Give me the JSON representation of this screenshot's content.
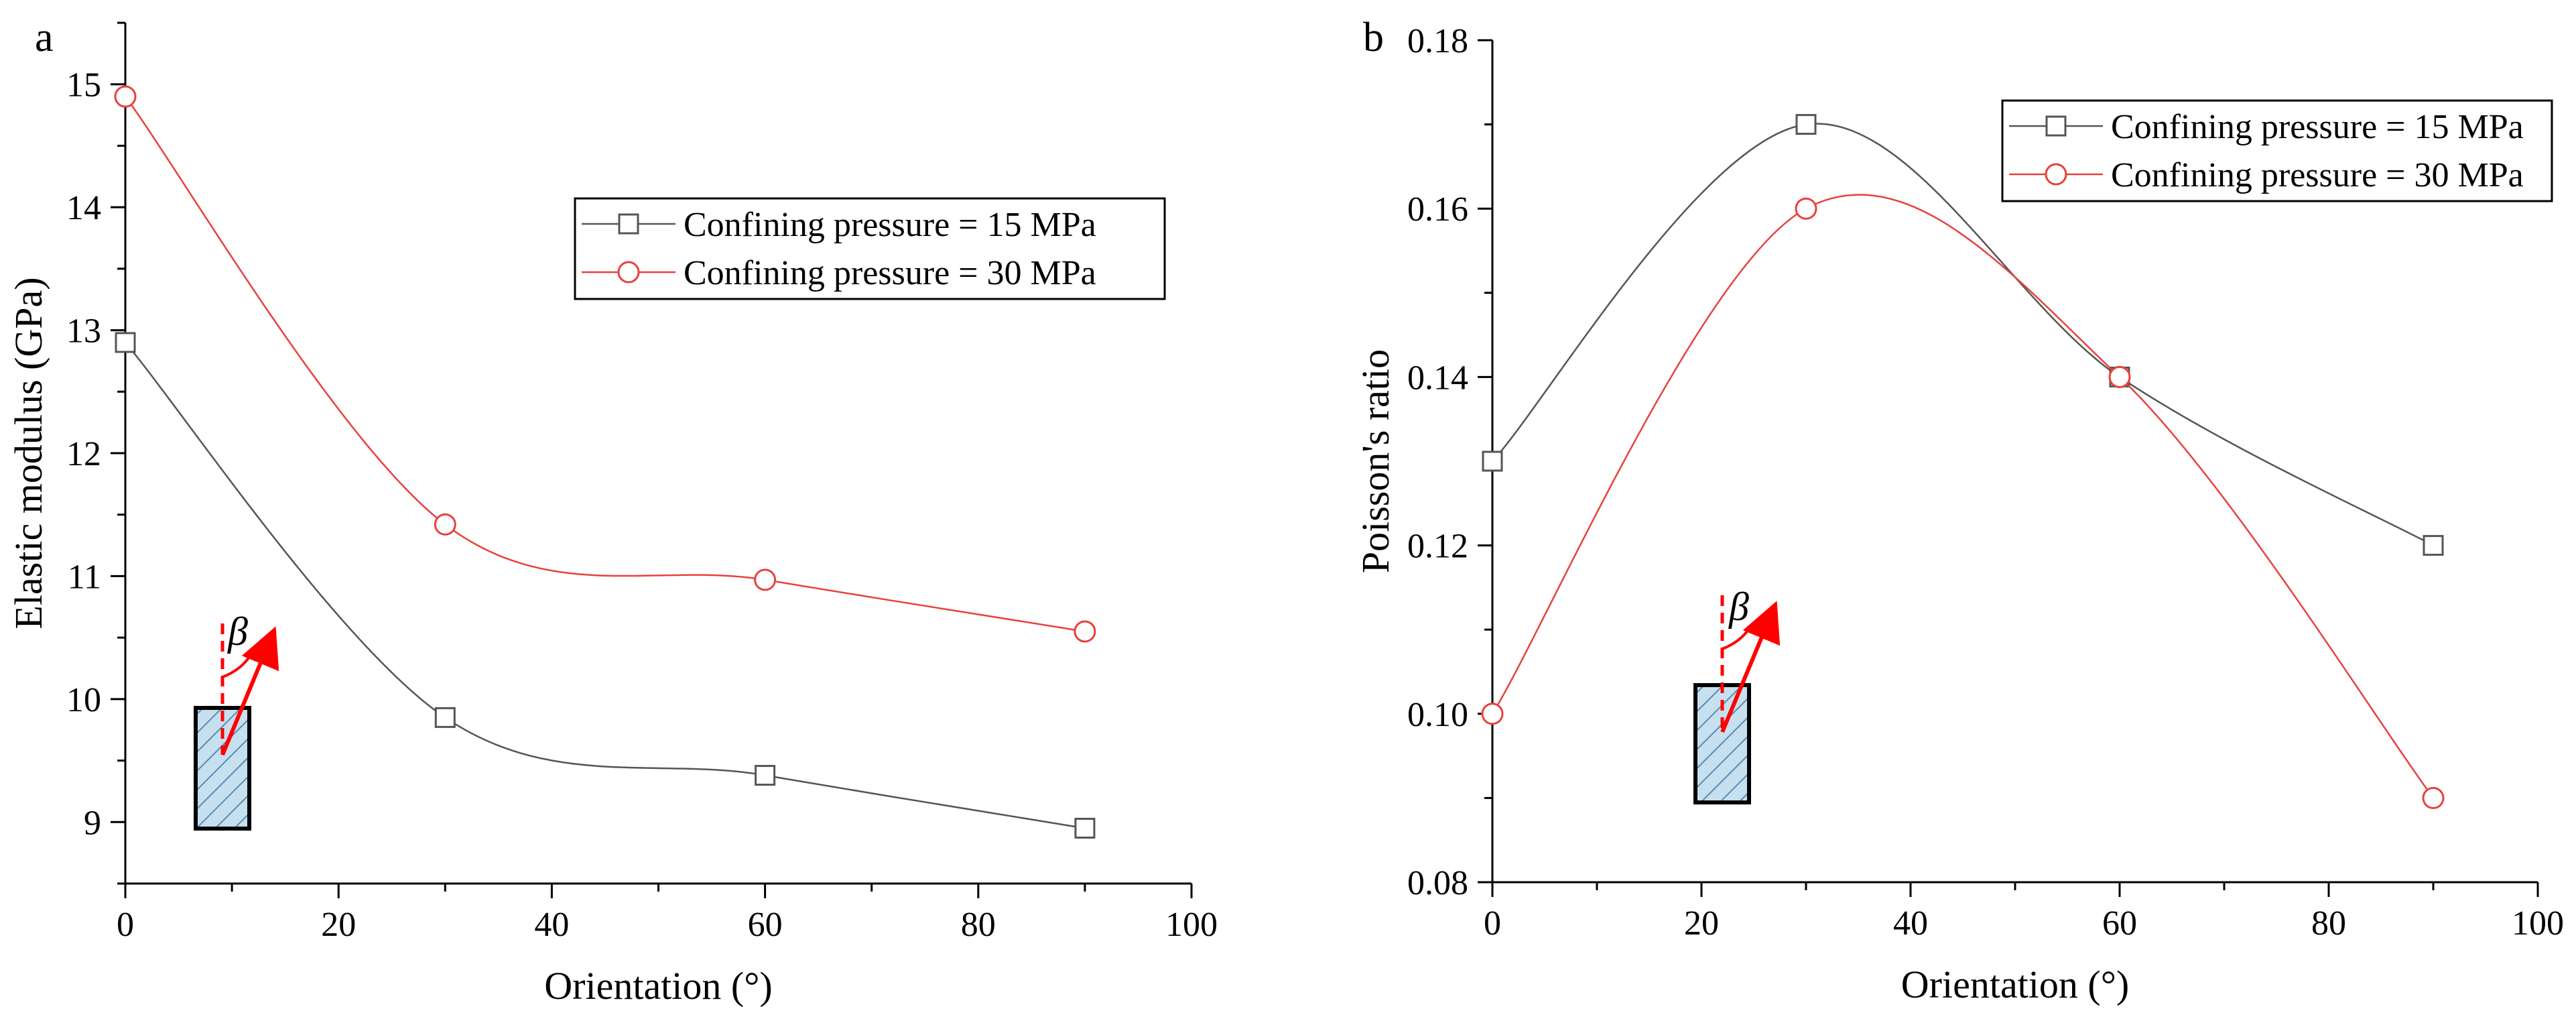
{
  "chart_data": [
    {
      "panel_label": "a",
      "type": "line",
      "xlabel": "Orientation (°)",
      "ylabel": "Elastic modulus (GPa)",
      "xlim": [
        0,
        100
      ],
      "ylim": [
        8.5,
        15.5
      ],
      "xticks": [
        0,
        20,
        40,
        60,
        80,
        100
      ],
      "yticks": [
        9,
        10,
        11,
        12,
        13,
        14,
        15
      ],
      "x": [
        0,
        30,
        60,
        90
      ],
      "series": [
        {
          "name": "Confining pressure = 15 MPa",
          "marker": "square",
          "color": "#555555",
          "values": [
            12.9,
            9.85,
            9.38,
            8.95
          ]
        },
        {
          "name": "Confining pressure = 30 MPa",
          "marker": "circle",
          "color": "#e8413c",
          "values": [
            14.9,
            11.42,
            10.97,
            10.55
          ]
        }
      ],
      "legend_labels": [
        "Confining pressure = 15 MPa",
        "Confining pressure = 30 MPa"
      ],
      "legend_location": "upper-right",
      "inset_symbol": "β"
    },
    {
      "panel_label": "b",
      "type": "line",
      "xlabel": "Orientation (°)",
      "ylabel": "Poisson's ratio",
      "xlim": [
        0,
        100
      ],
      "ylim": [
        0.08,
        0.18
      ],
      "xticks": [
        0,
        20,
        40,
        60,
        80,
        100
      ],
      "yticks": [
        0.08,
        0.1,
        0.12,
        0.14,
        0.16,
        0.18
      ],
      "ytick_labels": [
        "0.08",
        "0.10",
        "0.12",
        "0.14",
        "0.16",
        "0.18"
      ],
      "x": [
        0,
        30,
        60,
        90
      ],
      "series": [
        {
          "name": "Confining pressure = 15 MPa",
          "marker": "square",
          "color": "#555555",
          "values": [
            0.13,
            0.17,
            0.14,
            0.12
          ]
        },
        {
          "name": "Confining pressure = 30 MPa",
          "marker": "circle",
          "color": "#e8413c",
          "values": [
            0.1,
            0.16,
            0.14,
            0.09
          ]
        }
      ],
      "legend_labels": [
        "Confining pressure = 15 MPa",
        "Confining pressure = 30 MPa"
      ],
      "legend_location": "upper-right",
      "inset_symbol": "β"
    }
  ]
}
